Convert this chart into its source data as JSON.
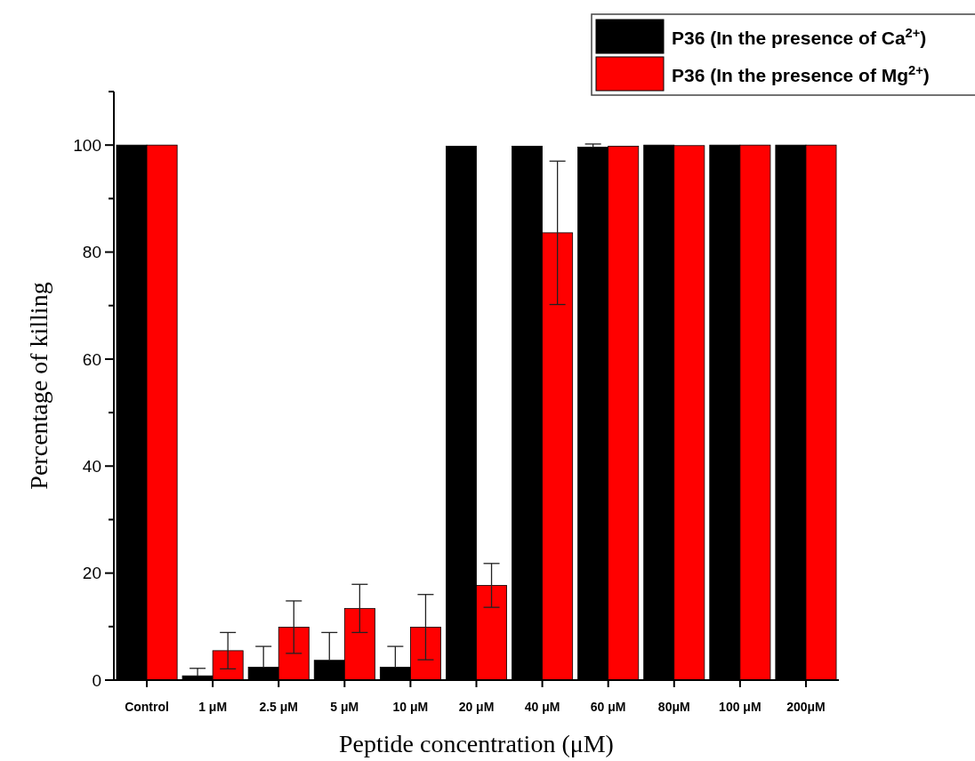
{
  "chart_data": {
    "type": "bar",
    "xlabel": "Peptide concentration (μM)",
    "ylabel": "Percentage of killing",
    "categories": [
      "Control",
      "1 μM",
      "2.5 μM",
      "5 μM",
      "10 μM",
      "20 μM",
      "40 μM",
      "60 μM",
      "80μM",
      "100 μM",
      "200μM"
    ],
    "series": [
      {
        "name": "P36 (In the presence of Ca$^{2+}$)",
        "color": "#000000",
        "values": [
          100,
          0.8,
          2.4,
          3.7,
          2.4,
          99.8,
          99.8,
          99.6,
          100,
          100,
          100
        ],
        "errors": [
          null,
          [
            0.8,
            2.2
          ],
          [
            2.4,
            6.3
          ],
          [
            3.7,
            8.9
          ],
          [
            2.4,
            6.3
          ],
          null,
          null,
          [
            99.6,
            100.2
          ],
          null,
          null,
          null
        ]
      },
      {
        "name": "P36 (In the presence of Mg$^{2+}$)",
        "color": "#ff0000",
        "values": [
          100,
          5.5,
          9.9,
          13.4,
          9.9,
          17.7,
          83.6,
          99.8,
          99.9,
          100,
          100
        ],
        "errors": [
          null,
          3.4,
          4.9,
          4.5,
          6.1,
          4.1,
          13.4,
          null,
          null,
          null,
          null
        ]
      }
    ],
    "ylim": [
      0,
      110
    ],
    "yticks": [
      0,
      {
        "value": 10,
        "label": null
      },
      20,
      {
        "value": 30,
        "label": null
      },
      40,
      {
        "value": 50,
        "label": null
      },
      60,
      {
        "value": 70,
        "label": null
      },
      80,
      {
        "value": 90,
        "label": null
      },
      100,
      {
        "value": 110,
        "label": null
      }
    ],
    "legend": "top right",
    "grid": false
  }
}
